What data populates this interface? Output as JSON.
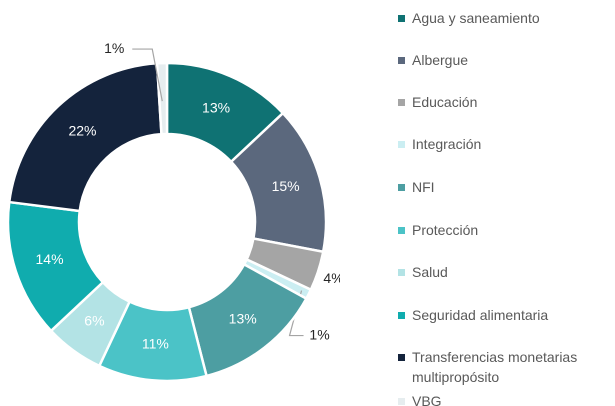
{
  "chart_data": {
    "type": "donut",
    "categories": [
      "Agua y saneamiento",
      "Albergue",
      "Educación",
      "Integración",
      "NFI",
      "Protección",
      "Salud",
      "Seguridad alimentaria",
      "Transferencias monetarias multipropósito",
      "VBG"
    ],
    "values": [
      13,
      15,
      4,
      1,
      13,
      11,
      6,
      14,
      22,
      1
    ],
    "value_labels": [
      "13%",
      "15%",
      "4%",
      "1%",
      "13%",
      "11%",
      "6%",
      "14%",
      "22%",
      "1%"
    ],
    "colors": [
      "#0f7273",
      "#5b687d",
      "#a5a5a5",
      "#cbeef2",
      "#4d9ea2",
      "#4bc3c7",
      "#b3e3e5",
      "#10acae",
      "#14233c",
      "#e6edef"
    ],
    "legend": "right"
  }
}
